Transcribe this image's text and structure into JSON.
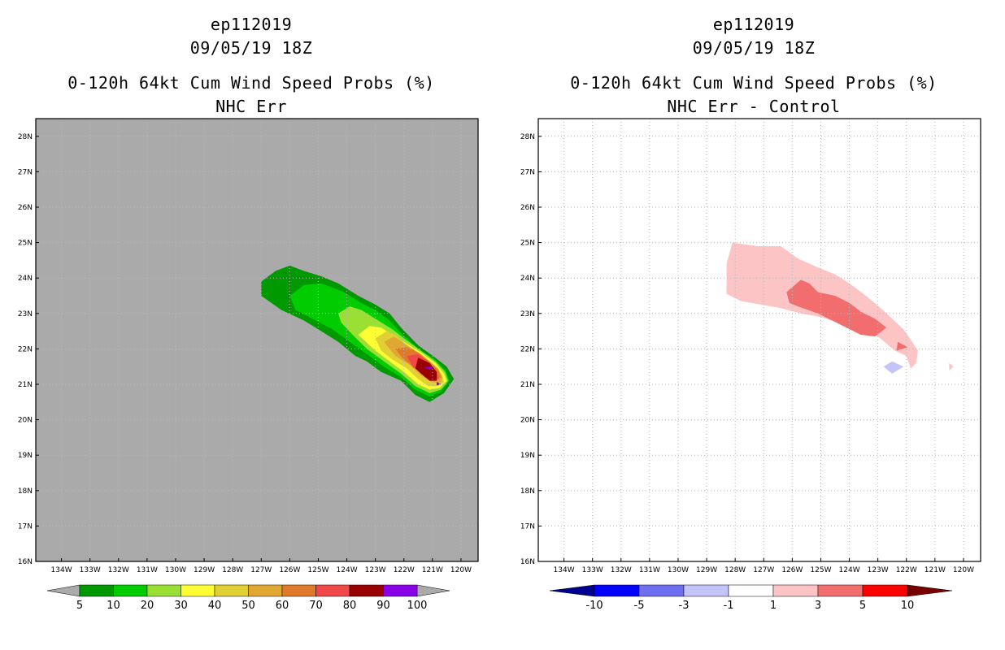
{
  "left": {
    "title_line1": "ep112019",
    "title_line2": "09/05/19 18Z",
    "title_line3": "0-120h 64kt Cum Wind Speed Probs (%)",
    "title_line4": "NHC Err"
  },
  "right": {
    "title_line1": "ep112019",
    "title_line2": "09/05/19 18Z",
    "title_line3": "0-120h 64kt Cum Wind Speed Probs (%)",
    "title_line4": "NHC Err - Control"
  },
  "colors": {
    "land_gray": "#aaaaaa",
    "grid": "#b8b8b8"
  },
  "chart_data": [
    {
      "type": "heatmap",
      "title": "0-120h 64kt Cum Wind Speed Probs (%) — NHC Err",
      "x_range": [
        -134.9,
        -119.4
      ],
      "y_range": [
        16,
        28.5
      ],
      "x_ticks": [
        "134W",
        "133W",
        "132W",
        "131W",
        "130W",
        "129W",
        "128W",
        "127W",
        "126W",
        "125W",
        "124W",
        "123W",
        "122W",
        "121W",
        "120W"
      ],
      "x_tick_values": [
        -134,
        -133,
        -132,
        -131,
        -130,
        -129,
        -128,
        -127,
        -126,
        -125,
        -124,
        -123,
        -122,
        -121,
        -120
      ],
      "y_ticks": [
        "16N",
        "17N",
        "18N",
        "19N",
        "20N",
        "21N",
        "22N",
        "23N",
        "24N",
        "25N",
        "26N",
        "27N",
        "28N"
      ],
      "y_tick_values": [
        16,
        17,
        18,
        19,
        20,
        21,
        22,
        23,
        24,
        25,
        26,
        27,
        28
      ],
      "grid": true,
      "colorbar": {
        "labels": [
          "5",
          "10",
          "20",
          "30",
          "40",
          "50",
          "60",
          "70",
          "80",
          "90",
          "100"
        ],
        "colors": [
          "#009900",
          "#00cc00",
          "#99e033",
          "#ffff33",
          "#e0d033",
          "#e0a833",
          "#e07a2a",
          "#f04848",
          "#990000",
          "#8a00e6"
        ],
        "end_colors": [
          "#aaaaaa",
          "#aaaaaa"
        ]
      },
      "contours": [
        {
          "level": 5,
          "color": "#009900",
          "points": [
            [
              -127,
              23.9
            ],
            [
              -126.5,
              24.2
            ],
            [
              -126,
              24.35
            ],
            [
              -125.5,
              24.2
            ],
            [
              -124.9,
              24.05
            ],
            [
              -124.3,
              23.85
            ],
            [
              -123.6,
              23.5
            ],
            [
              -123.0,
              23.25
            ],
            [
              -122.5,
              23.0
            ],
            [
              -122.1,
              22.6
            ],
            [
              -121.5,
              22.1
            ],
            [
              -120.9,
              21.75
            ],
            [
              -120.5,
              21.5
            ],
            [
              -120.25,
              21.15
            ],
            [
              -120.6,
              20.75
            ],
            [
              -121.1,
              20.5
            ],
            [
              -121.6,
              20.7
            ],
            [
              -122.1,
              21.1
            ],
            [
              -122.8,
              21.35
            ],
            [
              -123.3,
              21.65
            ],
            [
              -123.7,
              21.8
            ],
            [
              -124.3,
              22.2
            ],
            [
              -125.0,
              22.55
            ],
            [
              -125.5,
              22.8
            ],
            [
              -126.3,
              23.1
            ],
            [
              -127.0,
              23.5
            ]
          ]
        },
        {
          "level": 10,
          "color": "#00cc00",
          "points": [
            [
              -126,
              23.5
            ],
            [
              -125.5,
              23.8
            ],
            [
              -124.9,
              23.85
            ],
            [
              -124.1,
              23.6
            ],
            [
              -123.5,
              23.3
            ],
            [
              -123.0,
              23.1
            ],
            [
              -122.5,
              22.8
            ],
            [
              -122.1,
              22.45
            ],
            [
              -121.5,
              22.0
            ],
            [
              -120.9,
              21.7
            ],
            [
              -120.55,
              21.4
            ],
            [
              -120.4,
              21.1
            ],
            [
              -120.7,
              20.8
            ],
            [
              -121.1,
              20.65
            ],
            [
              -121.6,
              20.85
            ],
            [
              -122.1,
              21.2
            ],
            [
              -122.7,
              21.5
            ],
            [
              -123.3,
              21.85
            ],
            [
              -123.9,
              22.2
            ],
            [
              -124.5,
              22.55
            ],
            [
              -125.2,
              22.85
            ],
            [
              -125.8,
              23.1
            ]
          ]
        },
        {
          "level": 20,
          "color": "#99e033",
          "points": [
            [
              -124.3,
              23.0
            ],
            [
              -123.9,
              23.2
            ],
            [
              -123.5,
              23.1
            ],
            [
              -122.9,
              22.8
            ],
            [
              -122.4,
              22.55
            ],
            [
              -122.0,
              22.3
            ],
            [
              -121.4,
              21.95
            ],
            [
              -120.9,
              21.65
            ],
            [
              -120.55,
              21.35
            ],
            [
              -120.45,
              21.1
            ],
            [
              -120.7,
              20.85
            ],
            [
              -121.1,
              20.75
            ],
            [
              -121.6,
              20.95
            ],
            [
              -122.1,
              21.3
            ],
            [
              -122.7,
              21.65
            ],
            [
              -123.3,
              22.0
            ],
            [
              -123.8,
              22.4
            ],
            [
              -124.2,
              22.75
            ]
          ]
        },
        {
          "level": 30,
          "color": "#ffff33",
          "points": [
            [
              -123.6,
              22.4
            ],
            [
              -123.2,
              22.65
            ],
            [
              -122.8,
              22.6
            ],
            [
              -122.4,
              22.4
            ],
            [
              -121.9,
              22.15
            ],
            [
              -121.4,
              21.9
            ],
            [
              -120.9,
              21.6
            ],
            [
              -120.6,
              21.3
            ],
            [
              -120.5,
              21.1
            ],
            [
              -120.75,
              20.9
            ],
            [
              -121.1,
              20.85
            ],
            [
              -121.5,
              21.0
            ],
            [
              -122.0,
              21.35
            ],
            [
              -122.5,
              21.65
            ],
            [
              -123.0,
              21.95
            ]
          ]
        },
        {
          "level": 40,
          "color": "#e0d033",
          "points": [
            [
              -123.0,
              22.3
            ],
            [
              -122.6,
              22.5
            ],
            [
              -122.3,
              22.4
            ],
            [
              -121.9,
              22.1
            ],
            [
              -121.4,
              21.85
            ],
            [
              -120.95,
              21.55
            ],
            [
              -120.65,
              21.25
            ],
            [
              -120.6,
              21.05
            ],
            [
              -120.8,
              20.95
            ],
            [
              -121.15,
              20.95
            ],
            [
              -121.5,
              21.15
            ],
            [
              -121.9,
              21.45
            ],
            [
              -122.4,
              21.7
            ],
            [
              -122.8,
              21.95
            ]
          ]
        },
        {
          "level": 50,
          "color": "#e0a833",
          "points": [
            [
              -122.7,
              22.2
            ],
            [
              -122.35,
              22.35
            ],
            [
              -122.05,
              22.2
            ],
            [
              -121.6,
              21.95
            ],
            [
              -121.2,
              21.7
            ],
            [
              -120.8,
              21.45
            ],
            [
              -120.65,
              21.2
            ],
            [
              -120.7,
              21.05
            ],
            [
              -121.0,
              21.05
            ],
            [
              -121.4,
              21.25
            ],
            [
              -121.8,
              21.55
            ],
            [
              -122.3,
              21.8
            ]
          ]
        },
        {
          "level": 60,
          "color": "#e07a2a",
          "points": [
            [
              -122.3,
              22.0
            ],
            [
              -121.9,
              22.05
            ],
            [
              -121.5,
              21.9
            ],
            [
              -121.1,
              21.65
            ],
            [
              -120.8,
              21.4
            ],
            [
              -120.7,
              21.2
            ],
            [
              -120.85,
              21.1
            ],
            [
              -121.2,
              21.2
            ],
            [
              -121.6,
              21.45
            ],
            [
              -122.0,
              21.7
            ]
          ]
        },
        {
          "level": 70,
          "color": "#f04848",
          "points": [
            [
              -121.9,
              21.8
            ],
            [
              -121.5,
              21.85
            ],
            [
              -121.1,
              21.6
            ],
            [
              -120.85,
              21.35
            ],
            [
              -120.8,
              21.15
            ],
            [
              -121.0,
              21.15
            ],
            [
              -121.35,
              21.3
            ],
            [
              -121.7,
              21.5
            ]
          ]
        },
        {
          "level": 80,
          "color": "#990000",
          "points": [
            [
              -121.5,
              21.75
            ],
            [
              -121.1,
              21.6
            ],
            [
              -120.85,
              21.35
            ],
            [
              -120.85,
              21.1
            ],
            [
              -121.1,
              21.1
            ],
            [
              -121.4,
              21.3
            ],
            [
              -121.6,
              21.45
            ]
          ]
        },
        {
          "level": 90,
          "color": "#8a00e6",
          "points": [
            [
              -121.3,
              21.48
            ],
            [
              -120.95,
              21.5
            ],
            [
              -121.1,
              21.42
            ]
          ]
        },
        {
          "level": 90,
          "color": "#8a00e6",
          "points": [
            [
              -120.85,
              21.07
            ],
            [
              -120.7,
              21.0
            ],
            [
              -120.85,
              20.97
            ]
          ]
        }
      ]
    },
    {
      "type": "heatmap",
      "title": "0-120h 64kt Cum Wind Speed Probs (%) — NHC Err - Control",
      "x_range": [
        -134.9,
        -119.4
      ],
      "y_range": [
        16,
        28.5
      ],
      "x_ticks": [
        "134W",
        "133W",
        "132W",
        "131W",
        "130W",
        "129W",
        "128W",
        "127W",
        "126W",
        "125W",
        "124W",
        "123W",
        "122W",
        "121W",
        "120W"
      ],
      "x_tick_values": [
        -134,
        -133,
        -132,
        -131,
        -130,
        -129,
        -128,
        -127,
        -126,
        -125,
        -124,
        -123,
        -122,
        -121,
        -120
      ],
      "y_ticks": [
        "16N",
        "17N",
        "18N",
        "19N",
        "20N",
        "21N",
        "22N",
        "23N",
        "24N",
        "25N",
        "26N",
        "27N",
        "28N"
      ],
      "y_tick_values": [
        16,
        17,
        18,
        19,
        20,
        21,
        22,
        23,
        24,
        25,
        26,
        27,
        28
      ],
      "grid": true,
      "colorbar": {
        "labels": [
          "-10",
          "-5",
          "-3",
          "-1",
          "1",
          "3",
          "5",
          "10"
        ],
        "colors": [
          "#0000ff",
          "#6e6ef0",
          "#c4c4fa",
          "#ffffff",
          "#fcc4c4",
          "#f26e6e",
          "#ff0000"
        ],
        "end_colors": [
          "#000090",
          "#7a0000"
        ]
      },
      "contours": [
        {
          "level": 1,
          "color": "#fcc4c4",
          "points": [
            [
              -128.1,
              25.0
            ],
            [
              -127.2,
              24.9
            ],
            [
              -126.4,
              24.9
            ],
            [
              -125.8,
              24.55
            ],
            [
              -125.1,
              24.3
            ],
            [
              -124.5,
              24.1
            ],
            [
              -124.0,
              23.85
            ],
            [
              -123.5,
              23.55
            ],
            [
              -122.9,
              23.15
            ],
            [
              -122.5,
              22.85
            ],
            [
              -122.1,
              22.55
            ],
            [
              -121.8,
              22.2
            ],
            [
              -121.6,
              21.95
            ],
            [
              -121.65,
              21.6
            ],
            [
              -121.85,
              21.45
            ],
            [
              -122.0,
              21.8
            ],
            [
              -122.4,
              21.95
            ],
            [
              -123.0,
              22.35
            ],
            [
              -123.6,
              22.5
            ],
            [
              -124.2,
              22.7
            ],
            [
              -125.0,
              22.9
            ],
            [
              -125.7,
              23.0
            ],
            [
              -126.4,
              23.15
            ],
            [
              -127.1,
              23.25
            ],
            [
              -127.8,
              23.35
            ],
            [
              -128.3,
              23.55
            ],
            [
              -128.3,
              24.4
            ]
          ]
        },
        {
          "level": 3,
          "color": "#f26e6e",
          "points": [
            [
              -126.2,
              23.6
            ],
            [
              -125.7,
              23.95
            ],
            [
              -125.4,
              23.85
            ],
            [
              -125.1,
              23.6
            ],
            [
              -124.5,
              23.5
            ],
            [
              -124.0,
              23.3
            ],
            [
              -123.6,
              23.05
            ],
            [
              -123.1,
              22.85
            ],
            [
              -122.7,
              22.6
            ],
            [
              -123.1,
              22.35
            ],
            [
              -123.6,
              22.4
            ],
            [
              -124.1,
              22.6
            ],
            [
              -124.6,
              22.8
            ],
            [
              -125.1,
              23.0
            ],
            [
              -125.8,
              23.2
            ],
            [
              -126.1,
              23.3
            ]
          ]
        },
        {
          "level": 3,
          "color": "#f26e6e",
          "points": [
            [
              -122.3,
              22.2
            ],
            [
              -121.95,
              22.05
            ],
            [
              -122.35,
              21.95
            ]
          ]
        },
        {
          "level": 1,
          "color": "#fcc4c4",
          "points": [
            [
              -120.5,
              21.6
            ],
            [
              -120.35,
              21.5
            ],
            [
              -120.5,
              21.4
            ]
          ]
        },
        {
          "level": -1,
          "color": "#c4c4fa",
          "points": [
            [
              -122.8,
              21.5
            ],
            [
              -122.5,
              21.65
            ],
            [
              -122.1,
              21.5
            ],
            [
              -122.5,
              21.3
            ]
          ]
        }
      ]
    }
  ]
}
